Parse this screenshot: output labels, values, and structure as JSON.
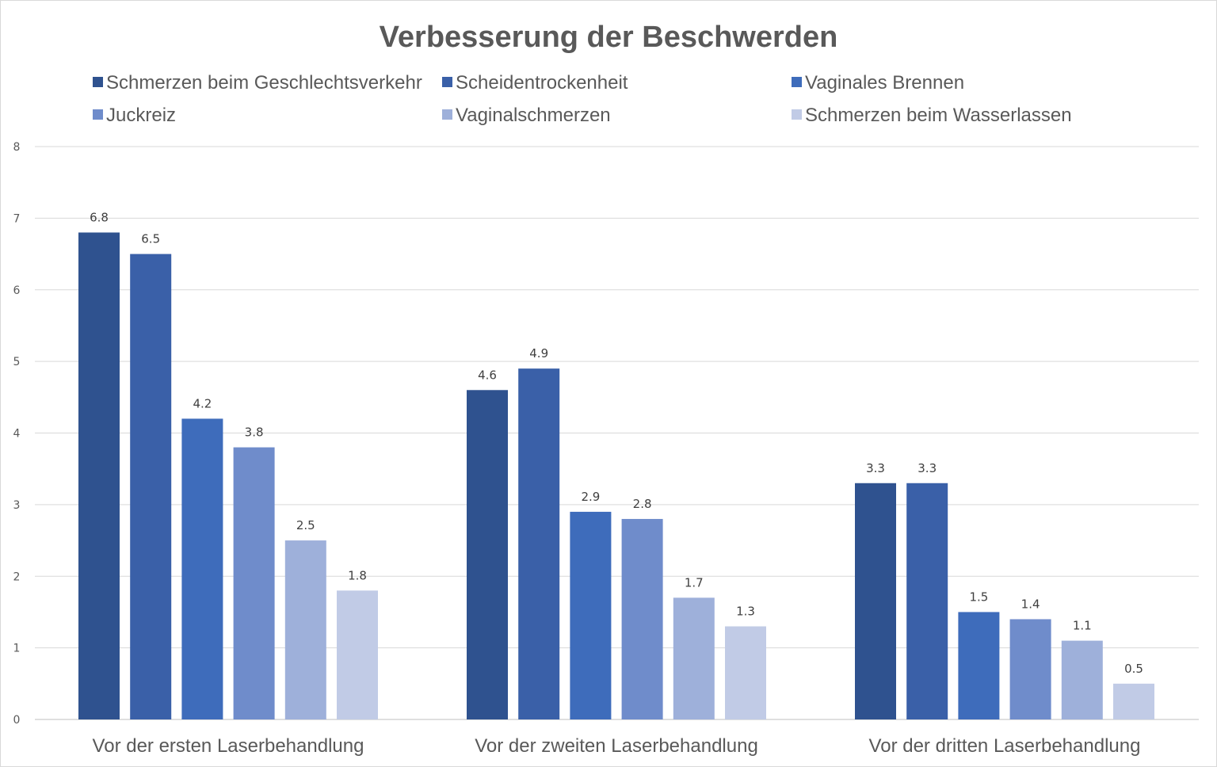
{
  "chart_data": {
    "type": "bar",
    "title": "Verbesserung der Beschwerden",
    "categories": [
      "Vor der ersten Laserbehandlung",
      "Vor der zweiten Laserbehandlung",
      "Vor der dritten Laserbehandlung"
    ],
    "series": [
      {
        "name": "Schmerzen beim Geschlechtsverkehr",
        "values": [
          6.8,
          4.6,
          3.3
        ],
        "color": "#2f528f"
      },
      {
        "name": "Scheidentrockenheit",
        "values": [
          6.5,
          4.9,
          3.3
        ],
        "color": "#3a60a8"
      },
      {
        "name": "Vaginales Brennen",
        "values": [
          4.2,
          2.9,
          1.5
        ],
        "color": "#3e6cbb"
      },
      {
        "name": "Juckreiz",
        "values": [
          3.8,
          2.8,
          1.4
        ],
        "color": "#6f8ccb"
      },
      {
        "name": "Vaginalschmerzen",
        "values": [
          2.5,
          1.7,
          1.1
        ],
        "color": "#9eb0da"
      },
      {
        "name": "Schmerzen beim Wasserlassen",
        "values": [
          1.8,
          1.3,
          0.5
        ],
        "color": "#c1cbe6"
      }
    ],
    "ylim": [
      0,
      8
    ],
    "yticks": [
      0,
      1,
      2,
      3,
      4,
      5,
      6,
      7,
      8
    ],
    "grid": true,
    "legend_position": "top",
    "data_labels": true
  }
}
